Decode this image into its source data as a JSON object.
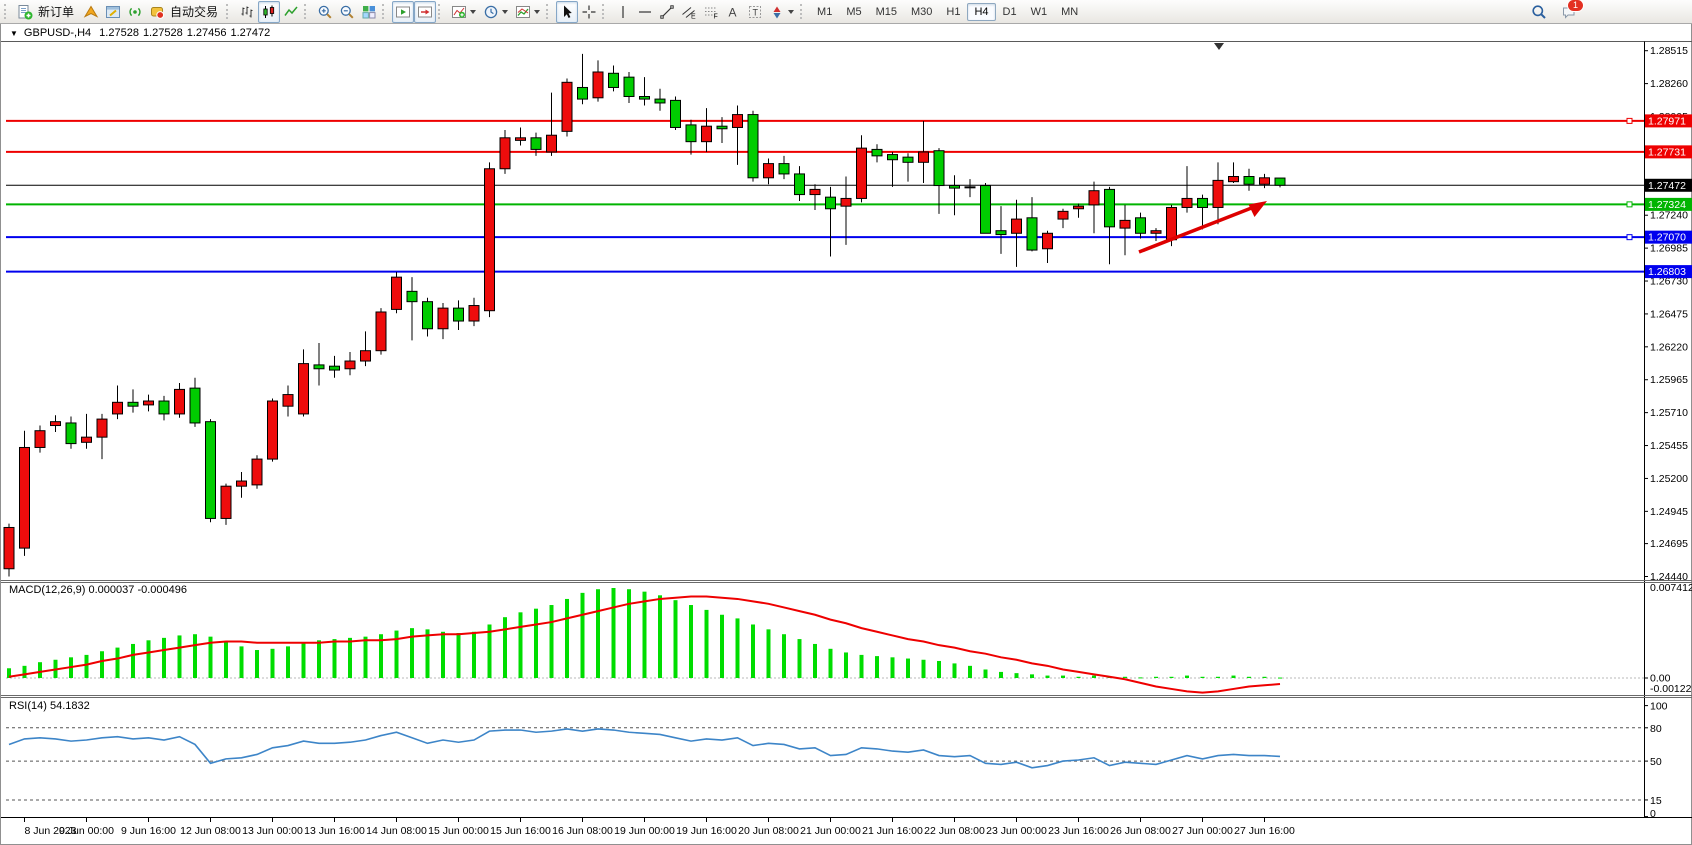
{
  "colors": {
    "candle_up": "#ee0c0c",
    "candle_down": "#00cc00",
    "candle_border": "#000000",
    "macd_hist": "#00dd00",
    "macd_signal": "#ee0000",
    "rsi_line": "#3d85c8",
    "arrow": "#dd0000",
    "level_red": "#ee0000",
    "level_green": "#00b400",
    "level_blue": "#0000ee",
    "level_black": "#000000"
  },
  "toolbar": {
    "groups": [
      {
        "items": [
          {
            "name": "new-order-button",
            "icon": "new-order-icon",
            "label": "新订单"
          },
          {
            "name": "mql5-button",
            "icon": "mql5-icon"
          },
          {
            "name": "metaeditor-button",
            "icon": "metaeditor-icon"
          },
          {
            "name": "signals-button",
            "icon": "signals-icon"
          },
          {
            "name": "autotrading-button",
            "icon": "autotrading-icon",
            "label": "自动交易"
          }
        ]
      },
      {
        "items": [
          {
            "name": "chart-bars-button",
            "icon": "chart-bars-icon"
          },
          {
            "name": "chart-candles-button",
            "icon": "chart-candles-icon",
            "active": true
          },
          {
            "name": "chart-line-button",
            "icon": "chart-line-icon"
          }
        ]
      },
      {
        "items": [
          {
            "name": "zoom-in-button",
            "icon": "zoom-in-icon"
          },
          {
            "name": "zoom-out-button",
            "icon": "zoom-out-icon"
          },
          {
            "name": "tile-windows-button",
            "icon": "tile-windows-icon"
          }
        ]
      },
      {
        "items": [
          {
            "name": "auto-scroll-button",
            "icon": "auto-scroll-icon",
            "active": true
          },
          {
            "name": "chart-shift-button",
            "icon": "chart-shift-icon",
            "active": true
          }
        ]
      },
      {
        "items": [
          {
            "name": "indicators-button",
            "icon": "indicators-icon",
            "caret": true
          },
          {
            "name": "periods-button",
            "icon": "periods-icon",
            "caret": true
          },
          {
            "name": "templates-button",
            "icon": "templates-icon",
            "caret": true
          }
        ]
      },
      {
        "items": [
          {
            "name": "cursor-button",
            "icon": "cursor-icon",
            "active": true
          },
          {
            "name": "crosshair-button",
            "icon": "crosshair-icon"
          }
        ]
      },
      {
        "items": [
          {
            "name": "vline-button",
            "icon": "vline-icon"
          },
          {
            "name": "hline-button",
            "icon": "hline-icon"
          },
          {
            "name": "trendline-button",
            "icon": "trendline-icon"
          },
          {
            "name": "channel-button",
            "icon": "channel-icon"
          },
          {
            "name": "fibonacci-button",
            "icon": "fibonacci-icon"
          },
          {
            "name": "text-button",
            "icon": "text-icon"
          },
          {
            "name": "label-button",
            "icon": "label-icon"
          },
          {
            "name": "arrows-button",
            "icon": "arrows-icon",
            "caret": true
          }
        ]
      }
    ],
    "timeframes": [
      {
        "label": "M1"
      },
      {
        "label": "M5"
      },
      {
        "label": "M15"
      },
      {
        "label": "M30"
      },
      {
        "label": "H1"
      },
      {
        "label": "H4",
        "active": true
      },
      {
        "label": "D1"
      },
      {
        "label": "W1"
      },
      {
        "label": "MN"
      }
    ],
    "right": [
      {
        "name": "search-button",
        "icon": "search-icon"
      },
      {
        "name": "notifications-button",
        "icon": "notifications-icon",
        "badge": "1"
      }
    ]
  },
  "chart": {
    "title": {
      "dropdown": "▼",
      "symbol": "GBPUSD-,H4",
      "open": "1.27528",
      "high": "1.27528",
      "low": "1.27456",
      "close": "1.27472"
    },
    "price_ticks": [
      "1.28515",
      "1.28260",
      "1.28005",
      "1.27750",
      "1.27495",
      "1.27240",
      "1.26985",
      "1.26730",
      "1.26475",
      "1.26220",
      "1.25965",
      "1.25710",
      "1.25455",
      "1.25200",
      "1.24945",
      "1.24695",
      "1.24440"
    ],
    "levels": [
      {
        "label": "1.27971",
        "price": 1.27971,
        "color": "#ee0000",
        "width": 2,
        "marker": true
      },
      {
        "label": "1.27731",
        "price": 1.27731,
        "color": "#ee0000",
        "width": 2,
        "marker": false
      },
      {
        "label": "1.27472",
        "price": 1.27472,
        "color": "#000000",
        "width": 1,
        "marker": false
      },
      {
        "label": "1.27324",
        "price": 1.27324,
        "color": "#00b400",
        "width": 2,
        "marker": true
      },
      {
        "label": "1.27070",
        "price": 1.2707,
        "color": "#0000ee",
        "width": 2,
        "marker": true
      },
      {
        "label": "1.26803",
        "price": 1.26803,
        "color": "#0000ee",
        "width": 2,
        "marker": false
      }
    ],
    "time_labels": [
      "8 Jun 2023",
      "9 Jun 00:00",
      "9 Jun 16:00",
      "12 Jun 08:00",
      "13 Jun 00:00",
      "13 Jun 16:00",
      "14 Jun 08:00",
      "15 Jun 00:00",
      "15 Jun 16:00",
      "16 Jun 08:00",
      "19 Jun 00:00",
      "19 Jun 16:00",
      "20 Jun 08:00",
      "21 Jun 00:00",
      "21 Jun 16:00",
      "22 Jun 08:00",
      "23 Jun 00:00",
      "23 Jun 16:00",
      "26 Jun 08:00",
      "27 Jun 00:00",
      "27 Jun 16:00"
    ],
    "time_label_candle_indices": [
      1,
      5,
      9,
      13,
      17,
      21,
      25,
      29,
      33,
      37,
      41,
      45,
      49,
      53,
      57,
      61,
      65,
      69,
      73,
      77,
      81
    ]
  },
  "panes": {
    "macd": {
      "label": "MACD(12,26,9)",
      "value_main": "0.000037",
      "value_signal": "-0.000496",
      "scale_top": "0.007412",
      "scale_zero": "0.00",
      "scale_min": "-0.001226"
    },
    "rsi": {
      "label": "RSI(14)",
      "value": "54.1832",
      "scale": [
        "100",
        "80",
        "50",
        "15",
        "0"
      ],
      "levels": [
        80,
        50,
        15
      ]
    }
  },
  "chart_data": [
    {
      "type": "candlestick",
      "title": "GBPUSD-,H4",
      "timeframe": "H4",
      "ylim": [
        1.2444,
        1.2857
      ],
      "x_labels": [
        "8 Jun 2023",
        "9 Jun 00:00",
        "9 Jun 16:00",
        "12 Jun 08:00",
        "13 Jun 00:00",
        "13 Jun 16:00",
        "14 Jun 08:00",
        "15 Jun 00:00",
        "15 Jun 16:00",
        "16 Jun 08:00",
        "19 Jun 00:00",
        "19 Jun 16:00",
        "20 Jun 08:00",
        "21 Jun 00:00",
        "21 Jun 16:00",
        "22 Jun 08:00",
        "23 Jun 00:00",
        "23 Jun 16:00",
        "26 Jun 08:00",
        "27 Jun 00:00",
        "27 Jun 16:00"
      ],
      "candles_ohlc": [
        [
          1.245,
          1.2485,
          1.2444,
          1.2482
        ],
        [
          1.2466,
          1.2557,
          1.246,
          1.2544
        ],
        [
          1.2544,
          1.2561,
          1.254,
          1.2557
        ],
        [
          1.2561,
          1.2569,
          1.2556,
          1.2564
        ],
        [
          1.2563,
          1.2568,
          1.2543,
          1.2547
        ],
        [
          1.2548,
          1.257,
          1.2543,
          1.2552
        ],
        [
          1.2552,
          1.257,
          1.2535,
          1.2566
        ],
        [
          1.257,
          1.2592,
          1.2566,
          1.2579
        ],
        [
          1.2579,
          1.2589,
          1.2571,
          1.2576
        ],
        [
          1.2577,
          1.2585,
          1.2572,
          1.258
        ],
        [
          1.258,
          1.2584,
          1.2565,
          1.257
        ],
        [
          1.257,
          1.2594,
          1.2567,
          1.2589
        ],
        [
          1.259,
          1.2598,
          1.256,
          1.2563
        ],
        [
          1.2564,
          1.2566,
          1.2486,
          1.2489
        ],
        [
          1.2489,
          1.2516,
          1.2484,
          1.2514
        ],
        [
          1.2514,
          1.2525,
          1.2505,
          1.2518
        ],
        [
          1.2515,
          1.2538,
          1.2512,
          1.2535
        ],
        [
          1.2535,
          1.2582,
          1.2533,
          1.258
        ],
        [
          1.2576,
          1.2592,
          1.2568,
          1.2585
        ],
        [
          1.257,
          1.262,
          1.2568,
          1.2609
        ],
        [
          1.2608,
          1.2625,
          1.2592,
          1.2605
        ],
        [
          1.2607,
          1.2615,
          1.2598,
          1.2604
        ],
        [
          1.2605,
          1.2618,
          1.26,
          1.2611
        ],
        [
          1.2611,
          1.2634,
          1.2607,
          1.2619
        ],
        [
          1.2619,
          1.2652,
          1.2616,
          1.2649
        ],
        [
          1.2651,
          1.268,
          1.2648,
          1.2676
        ],
        [
          1.2665,
          1.2676,
          1.2627,
          1.2657
        ],
        [
          1.2657,
          1.266,
          1.263,
          1.2636
        ],
        [
          1.2636,
          1.2656,
          1.2628,
          1.2652
        ],
        [
          1.2652,
          1.2658,
          1.2635,
          1.2642
        ],
        [
          1.2642,
          1.266,
          1.2638,
          1.2654
        ],
        [
          1.265,
          1.2765,
          1.2645,
          1.276
        ],
        [
          1.276,
          1.279,
          1.2756,
          1.2784
        ],
        [
          1.2782,
          1.2792,
          1.2778,
          1.2784
        ],
        [
          1.2784,
          1.2788,
          1.277,
          1.2775
        ],
        [
          1.2773,
          1.2819,
          1.277,
          1.2786
        ],
        [
          1.2789,
          1.283,
          1.2785,
          1.2827
        ],
        [
          1.2823,
          1.2849,
          1.281,
          1.2814
        ],
        [
          1.2815,
          1.2844,
          1.2812,
          1.2835
        ],
        [
          1.2834,
          1.284,
          1.282,
          1.2823
        ],
        [
          1.2831,
          1.2835,
          1.2811,
          1.2816
        ],
        [
          1.2816,
          1.2831,
          1.2809,
          1.2814
        ],
        [
          1.2814,
          1.2822,
          1.2805,
          1.2811
        ],
        [
          1.2813,
          1.2816,
          1.279,
          1.2792
        ],
        [
          1.2794,
          1.2798,
          1.2771,
          1.2781
        ],
        [
          1.2781,
          1.2807,
          1.2773,
          1.2793
        ],
        [
          1.2793,
          1.28,
          1.278,
          1.2791
        ],
        [
          1.2792,
          1.2809,
          1.2763,
          1.2802
        ],
        [
          1.2802,
          1.2805,
          1.275,
          1.2753
        ],
        [
          1.2753,
          1.2768,
          1.2748,
          1.2764
        ],
        [
          1.2764,
          1.277,
          1.2752,
          1.2756
        ],
        [
          1.2756,
          1.2762,
          1.2735,
          1.274
        ],
        [
          1.274,
          1.2748,
          1.2728,
          1.2744
        ],
        [
          1.2738,
          1.2746,
          1.2692,
          1.2729
        ],
        [
          1.2731,
          1.2754,
          1.2701,
          1.2737
        ],
        [
          1.2737,
          1.2786,
          1.2734,
          1.2776
        ],
        [
          1.2775,
          1.2779,
          1.2765,
          1.277
        ],
        [
          1.2771,
          1.2773,
          1.2746,
          1.2767
        ],
        [
          1.2769,
          1.2772,
          1.275,
          1.2765
        ],
        [
          1.2765,
          1.2797,
          1.2749,
          1.2773
        ],
        [
          1.2774,
          1.2776,
          1.2725,
          1.2747
        ],
        [
          1.2747,
          1.2755,
          1.2724,
          1.2745
        ],
        [
          1.2746,
          1.2752,
          1.2738,
          1.2746
        ],
        [
          1.2747,
          1.2749,
          1.271,
          1.271
        ],
        [
          1.2712,
          1.2731,
          1.2694,
          1.2709
        ],
        [
          1.271,
          1.2736,
          1.2684,
          1.2721
        ],
        [
          1.2722,
          1.2738,
          1.2696,
          1.2697
        ],
        [
          1.2698,
          1.2712,
          1.2687,
          1.271
        ],
        [
          1.2721,
          1.2729,
          1.2714,
          1.2727
        ],
        [
          1.2729,
          1.2733,
          1.2722,
          1.2731
        ],
        [
          1.2732,
          1.275,
          1.271,
          1.2743
        ],
        [
          1.2744,
          1.2746,
          1.2686,
          1.2715
        ],
        [
          1.2714,
          1.2732,
          1.2693,
          1.272
        ],
        [
          1.2722,
          1.2726,
          1.2706,
          1.271
        ],
        [
          1.271,
          1.2714,
          1.2704,
          1.2712
        ],
        [
          1.2705,
          1.2732,
          1.27,
          1.273
        ],
        [
          1.273,
          1.2762,
          1.2726,
          1.2737
        ],
        [
          1.2737,
          1.274,
          1.2713,
          1.273
        ],
        [
          1.273,
          1.2765,
          1.2717,
          1.2751
        ],
        [
          1.275,
          1.2765,
          1.2749,
          1.2754
        ],
        [
          1.2754,
          1.276,
          1.2743,
          1.2748
        ],
        [
          1.2748,
          1.2756,
          1.2745,
          1.2753
        ],
        [
          1.27528,
          1.27528,
          1.27456,
          1.27472
        ]
      ],
      "horizontal_levels": [
        1.27971,
        1.27731,
        1.27472,
        1.27324,
        1.2707,
        1.26803
      ],
      "annotation_arrow": {
        "direction": "up-right",
        "color": "#dd0000"
      }
    },
    {
      "type": "bar",
      "name": "MACD(12,26,9)",
      "ylim": [
        -0.001226,
        0.007412
      ],
      "histogram": [
        0.0008,
        0.001,
        0.0013,
        0.0015,
        0.0017,
        0.0019,
        0.0022,
        0.0025,
        0.0028,
        0.0031,
        0.0033,
        0.0035,
        0.0036,
        0.0034,
        0.003,
        0.0026,
        0.0023,
        0.0024,
        0.0026,
        0.0029,
        0.0031,
        0.0032,
        0.0033,
        0.0034,
        0.0036,
        0.0039,
        0.0041,
        0.004,
        0.0038,
        0.0037,
        0.0038,
        0.0044,
        0.005,
        0.0054,
        0.0057,
        0.006,
        0.0065,
        0.007,
        0.0073,
        0.0074,
        0.0073,
        0.0071,
        0.0068,
        0.0064,
        0.006,
        0.0056,
        0.0052,
        0.0049,
        0.0044,
        0.004,
        0.0036,
        0.0032,
        0.0028,
        0.0024,
        0.0021,
        0.0019,
        0.0018,
        0.0017,
        0.0016,
        0.0015,
        0.0014,
        0.0012,
        0.001,
        0.0007,
        0.0005,
        0.0004,
        0.0003,
        0.0002,
        0.0002,
        0.0001,
        0.0002,
        0.0001,
        0.0001,
        5e-05,
        0.0001,
        0.0001,
        0.0002,
        0.0001,
        0.0001,
        0.0002,
        0.0001,
        0.0001,
        3.7e-05
      ],
      "signal": [
        0.0001,
        0.0003,
        0.0005,
        0.0007,
        0.0009,
        0.0011,
        0.0014,
        0.0016,
        0.0019,
        0.0021,
        0.0023,
        0.0025,
        0.0027,
        0.0029,
        0.003,
        0.003,
        0.0029,
        0.0029,
        0.0029,
        0.0029,
        0.0029,
        0.003,
        0.003,
        0.0031,
        0.0031,
        0.0032,
        0.0034,
        0.0035,
        0.0036,
        0.0036,
        0.0037,
        0.0038,
        0.004,
        0.0042,
        0.0044,
        0.0046,
        0.0049,
        0.0052,
        0.0055,
        0.0058,
        0.0061,
        0.0063,
        0.0065,
        0.0066,
        0.0067,
        0.0067,
        0.0066,
        0.0065,
        0.0063,
        0.0061,
        0.0058,
        0.0055,
        0.0052,
        0.0048,
        0.0045,
        0.0041,
        0.0038,
        0.0035,
        0.0032,
        0.003,
        0.0027,
        0.0025,
        0.0022,
        0.002,
        0.0017,
        0.0015,
        0.0012,
        0.001,
        0.0007,
        0.0005,
        0.0003,
        0.0001,
        -0.0001,
        -0.0004,
        -0.0007,
        -0.0009,
        -0.0011,
        -0.0012,
        -0.0011,
        -0.0009,
        -0.0007,
        -0.0006,
        -0.000496
      ],
      "current_main": 3.7e-05,
      "current_signal": -0.000496
    },
    {
      "type": "line",
      "name": "RSI(14)",
      "ylim": [
        0,
        100
      ],
      "levels": [
        80,
        50,
        15
      ],
      "current": 54.1832,
      "values": [
        65,
        70,
        71,
        70,
        68,
        69,
        71,
        72,
        70,
        71,
        69,
        72,
        65,
        48,
        52,
        53,
        56,
        62,
        64,
        68,
        66,
        66,
        67,
        69,
        73,
        76,
        71,
        66,
        69,
        67,
        69,
        77,
        78,
        78,
        76,
        77,
        79,
        77,
        79,
        78,
        76,
        75,
        74,
        71,
        68,
        70,
        69,
        71,
        64,
        66,
        65,
        61,
        62,
        55,
        56,
        62,
        61,
        59,
        58,
        60,
        55,
        54,
        55,
        48,
        47,
        49,
        44,
        46,
        50,
        51,
        53,
        46,
        49,
        48,
        47,
        51,
        55,
        52,
        55,
        56,
        55,
        55,
        54.18
      ]
    }
  ]
}
